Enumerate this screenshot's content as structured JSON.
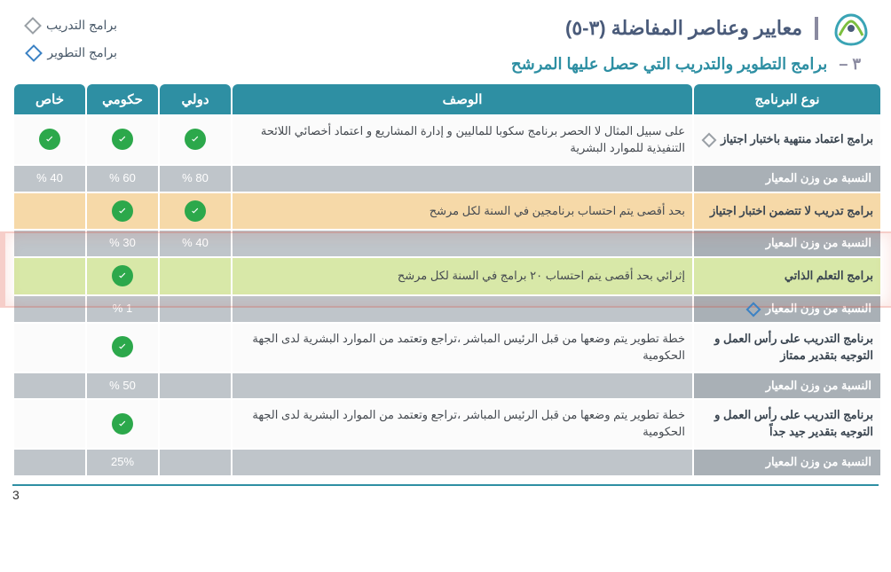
{
  "header": {
    "title": "معايير وعناصر المفاضلة (٣-٥)",
    "section_num": "٣ –",
    "subtitle": "برامج التطوير والتدريب التي حصل عليها المرشح"
  },
  "legend": {
    "training": "برامج التدريب",
    "development": "برامج التطوير"
  },
  "columns": {
    "type": "نوع البرنامج",
    "desc": "الوصف",
    "intl": "دولي",
    "gov": "حكومي",
    "priv": "خاص"
  },
  "weight_label": "النسبة من وزن المعيار",
  "rows": [
    {
      "type": "برامج اعتماد منتهية باختبار اجتياز",
      "marker": "gray",
      "desc": "على سبيل المثال لا الحصر برنامج سكوبا للماليين و إدارة المشاريع و اعتماد أخصائي اللائحة التنفيذية للموارد البشرية",
      "intl": true,
      "gov": true,
      "priv": true,
      "w_intl": "80 %",
      "w_gov": "60 %",
      "w_priv": "40 %",
      "hl": ""
    },
    {
      "type": "برامج تدريب لا تتضمن اختبار اجتياز",
      "marker": "",
      "desc": "بحد أقصى يتم احتساب برنامجين في السنة لكل مرشح",
      "intl": true,
      "gov": true,
      "priv": false,
      "w_intl": "40 %",
      "w_gov": "30 %",
      "w_priv": "",
      "hl": "orange"
    },
    {
      "type": "برامج التعلم الذاتي",
      "marker": "blue",
      "desc": "إثرائي بحد أقصى يتم احتساب ٢٠ برامج في السنة لكل مرشح",
      "intl": false,
      "gov": true,
      "priv": false,
      "w_intl": "",
      "w_gov": "1 %",
      "w_priv": "",
      "hl": "green",
      "marker_on_weight": true
    },
    {
      "type": "برنامج التدريب على رأس العمل و التوجيه بتقدير ممتاز",
      "marker": "",
      "desc": "خطة تطوير يتم وضعها من قبل الرئيس المباشر ،تراجع وتعتمد من الموارد البشرية لدى الجهة الحكومية",
      "intl": false,
      "gov": true,
      "priv": false,
      "w_intl": "",
      "w_gov": "50 %",
      "w_priv": "",
      "hl": ""
    },
    {
      "type": "برنامج التدريب على رأس العمل و التوجيه بتقدير جيد جداً",
      "marker": "",
      "desc": "خطة تطوير يتم وضعها من قبل الرئيس المباشر ،تراجع وتعتمد من الموارد البشرية لدى الجهة الحكومية",
      "intl": false,
      "gov": true,
      "priv": false,
      "w_intl": "",
      "w_gov": "25%",
      "w_priv": "",
      "hl": ""
    }
  ],
  "page_number": "3",
  "colors": {
    "header_teal": "#2e8fa3",
    "check_green": "#2ca84b",
    "weight_gray": "#a9b0b6"
  }
}
